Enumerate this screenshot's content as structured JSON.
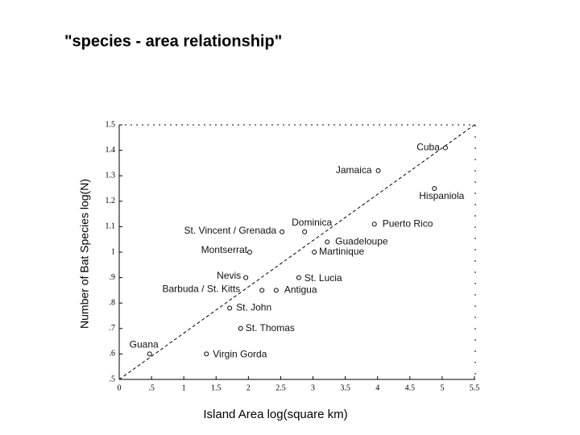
{
  "chart_data": {
    "type": "scatter",
    "title": "\"species - area relationship\"",
    "x_label": "Island Area log(square km)",
    "y_label": "Number of Bat Species log(N)",
    "point_labels": [
      "Cuba",
      "Jamaica",
      "Hispaniola",
      "Puerto Rico",
      "Dominica",
      "St. Vincent / Grenada",
      "Guadeloupe",
      "Martinique",
      "Montserrat",
      "Nevis",
      "St. Lucia",
      "Barbuda / St. Kitts",
      "Antigua",
      "St. John",
      "St. Thomas",
      "Guana",
      "Virgin Gorda"
    ],
    "x": [
      5.05,
      4.01,
      4.88,
      3.95,
      2.87,
      2.52,
      3.22,
      3.02,
      2.02,
      1.96,
      2.78,
      2.21,
      2.43,
      1.71,
      1.88,
      0.47,
      1.35
    ],
    "values": [
      1.41,
      1.32,
      1.25,
      1.11,
      1.08,
      1.08,
      1.04,
      1.0,
      1.0,
      0.9,
      0.9,
      0.85,
      0.85,
      0.78,
      0.7,
      0.6,
      0.6
    ],
    "trend_line": {
      "x": [
        0,
        5.5
      ],
      "y": [
        0.5,
        1.5
      ]
    },
    "xlim": [
      0,
      5.5
    ],
    "ylim": [
      0.5,
      1.5
    ],
    "xticks": [
      0,
      {
        "value": 0.5,
        "label": ".5"
      },
      1,
      1.5,
      2,
      2.5,
      3,
      3.5,
      4,
      4.5,
      5,
      5.5
    ],
    "yticks": [
      {
        "value": 0.5,
        "label": ".5"
      },
      {
        "value": 0.6,
        "label": ".6"
      },
      {
        "value": 0.7,
        "label": ".7"
      },
      {
        "value": 0.8,
        "label": ".8"
      },
      {
        "value": 0.9,
        "label": ".9"
      },
      1,
      1.1,
      1.2,
      1.3,
      1.4,
      1.5
    ]
  }
}
